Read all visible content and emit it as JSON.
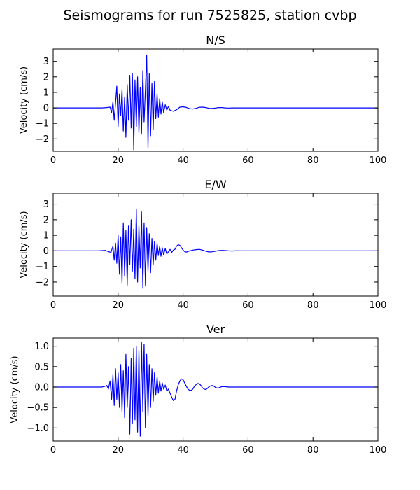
{
  "figure": {
    "title": "Seismograms for run 7525825, station cvbp"
  },
  "chart_data": [
    {
      "type": "line",
      "title": "N/S",
      "xlabel": "",
      "ylabel": "Velocity (cm/s)",
      "xlim": [
        0,
        100
      ],
      "ylim": [
        -2.8,
        3.8
      ],
      "xticks": [
        0,
        20,
        40,
        60,
        80,
        100
      ],
      "yticks": [
        -2,
        -1,
        0,
        1,
        2,
        3
      ],
      "ytick_labels": [
        "−2",
        "−1",
        "0",
        "1",
        "2",
        "3"
      ],
      "grid": false,
      "color": "#0000ff",
      "x": [
        0,
        15,
        16.5,
        17.5,
        18,
        18.4,
        18.8,
        19.2,
        19.6,
        20,
        20.4,
        20.8,
        21.2,
        21.6,
        22,
        22.4,
        22.8,
        23.2,
        23.6,
        24,
        24.4,
        24.8,
        25.2,
        25.6,
        26,
        26.4,
        26.8,
        27.2,
        27.6,
        28,
        28.4,
        28.8,
        29.2,
        29.6,
        30,
        30.4,
        30.8,
        31.2,
        31.6,
        32,
        32.4,
        32.8,
        33.2,
        33.6,
        34,
        34.5,
        35,
        35.5,
        36,
        37,
        38,
        39,
        40,
        41,
        42,
        43,
        44,
        45,
        46,
        47,
        48,
        49,
        50,
        51,
        52,
        53,
        54,
        55,
        56,
        58,
        60,
        100
      ],
      "y": [
        0,
        0,
        0.02,
        0.05,
        -0.3,
        0.4,
        -0.8,
        0.3,
        1.4,
        -1.2,
        0.9,
        -0.5,
        1.2,
        -1.5,
        0.7,
        -1.9,
        1.5,
        -0.8,
        2.1,
        -1.3,
        2.2,
        -2.7,
        1.8,
        -1.2,
        2.0,
        -1.6,
        1.3,
        -1.7,
        2.4,
        -0.9,
        1.2,
        3.4,
        -2.6,
        2.2,
        -1.8,
        1.6,
        -1.4,
        1.7,
        -0.7,
        0.9,
        -0.6,
        0.6,
        -0.4,
        0.4,
        -0.3,
        0.2,
        -0.15,
        0.1,
        -0.15,
        -0.22,
        -0.12,
        0.05,
        0.07,
        0.03,
        -0.05,
        -0.07,
        -0.03,
        0.04,
        0.05,
        0.02,
        -0.03,
        -0.04,
        -0.01,
        0.02,
        0.02,
        0,
        -0.01,
        0,
        0,
        0,
        0,
        0
      ]
    },
    {
      "type": "line",
      "title": "E/W",
      "xlabel": "",
      "ylabel": "Velocity (cm/s)",
      "xlim": [
        0,
        100
      ],
      "ylim": [
        -2.9,
        3.7
      ],
      "xticks": [
        0,
        20,
        40,
        60,
        80,
        100
      ],
      "yticks": [
        -2,
        -1,
        0,
        1,
        2,
        3
      ],
      "ytick_labels": [
        "−2",
        "−1",
        "0",
        "1",
        "2",
        "3"
      ],
      "grid": false,
      "color": "#0000ff",
      "x": [
        0,
        14,
        16,
        17,
        17.8,
        18.4,
        18.8,
        19.2,
        19.6,
        20,
        20.4,
        20.8,
        21.2,
        21.6,
        22,
        22.4,
        22.8,
        23.2,
        23.6,
        24,
        24.4,
        24.8,
        25.2,
        25.6,
        26,
        26.4,
        26.8,
        27.2,
        27.6,
        28,
        28.4,
        28.8,
        29.2,
        29.6,
        30,
        30.4,
        30.8,
        31.2,
        31.6,
        32,
        32.4,
        32.8,
        33.2,
        33.6,
        34,
        34.5,
        35,
        35.5,
        36,
        36.5,
        37,
        37.5,
        38,
        38.5,
        39,
        39.5,
        40,
        40.5,
        41,
        41.5,
        42,
        43,
        44,
        45,
        46,
        47,
        48,
        49,
        50,
        51,
        52,
        53,
        54,
        55,
        56,
        58,
        60,
        100
      ],
      "y": [
        0,
        0,
        0.03,
        -0.05,
        -0.1,
        0.3,
        -0.6,
        0.5,
        -0.8,
        1.0,
        -1.5,
        0.9,
        -2.1,
        1.8,
        -1.6,
        1.3,
        -2.2,
        1.6,
        -0.9,
        2.0,
        -1.3,
        1.4,
        -1.8,
        2.7,
        -2.0,
        1.6,
        -1.1,
        2.5,
        -2.4,
        1.8,
        -2.2,
        1.5,
        -1.3,
        1.1,
        -1.4,
        0.8,
        -0.9,
        0.6,
        -0.6,
        0.5,
        -0.3,
        0.3,
        -0.35,
        0.2,
        -0.25,
        0.15,
        -0.2,
        -0.05,
        0.1,
        -0.1,
        0.05,
        0.1,
        0.3,
        0.4,
        0.35,
        0.2,
        0.05,
        -0.05,
        -0.08,
        -0.05,
        0,
        0.05,
        0.08,
        0.1,
        0.05,
        -0.02,
        -0.07,
        -0.06,
        -0.02,
        0.02,
        0.03,
        0.02,
        0,
        -0.01,
        0,
        0,
        0,
        0
      ]
    },
    {
      "type": "line",
      "title": "Ver",
      "xlabel": "",
      "ylabel": "Velocity (cm/s)",
      "xlim": [
        0,
        100
      ],
      "ylim": [
        -1.32,
        1.2
      ],
      "xticks": [
        0,
        20,
        40,
        60,
        80,
        100
      ],
      "yticks": [
        -1.0,
        -0.5,
        0.0,
        0.5,
        1.0
      ],
      "ytick_labels": [
        "−1.0",
        "−0.5",
        "0.0",
        "0.5",
        "1.0"
      ],
      "grid": false,
      "color": "#0000ff",
      "x": [
        0,
        13,
        15,
        16,
        16.5,
        17,
        17.5,
        18,
        18.4,
        18.8,
        19.2,
        19.6,
        20,
        20.4,
        20.8,
        21.2,
        21.6,
        22,
        22.4,
        22.8,
        23.2,
        23.6,
        24,
        24.4,
        24.8,
        25.2,
        25.6,
        26,
        26.4,
        26.8,
        27.2,
        27.6,
        28,
        28.4,
        28.8,
        29.2,
        29.6,
        30,
        30.4,
        30.8,
        31.2,
        31.6,
        32,
        32.4,
        32.8,
        33.2,
        33.6,
        34,
        34.5,
        35,
        35.5,
        36,
        36.5,
        37,
        37.5,
        38,
        38.5,
        39,
        39.5,
        40,
        40.5,
        41,
        41.5,
        42,
        42.5,
        43,
        43.5,
        44,
        44.5,
        45,
        45.5,
        46,
        46.5,
        47,
        47.5,
        48,
        48.5,
        49,
        49.5,
        50,
        50.5,
        51,
        51.5,
        52,
        53,
        54,
        55,
        56,
        58,
        60,
        100
      ],
      "y": [
        0,
        0,
        0,
        0.02,
        0.04,
        -0.05,
        0.15,
        -0.3,
        0.3,
        -0.45,
        0.45,
        -0.3,
        0.35,
        -0.5,
        0.55,
        -0.6,
        0.4,
        -0.75,
        0.8,
        -0.5,
        0.5,
        -1.15,
        0.7,
        -0.9,
        0.95,
        -0.8,
        1.0,
        -1.1,
        0.9,
        -1.2,
        1.1,
        -0.6,
        1.05,
        -1.0,
        0.8,
        -0.7,
        0.55,
        -0.5,
        0.45,
        -0.35,
        0.35,
        -0.2,
        0.25,
        -0.15,
        0.15,
        -0.1,
        0.1,
        -0.05,
        0.05,
        -0.1,
        -0.05,
        -0.15,
        -0.25,
        -0.33,
        -0.3,
        -0.1,
        0.05,
        0.15,
        0.2,
        0.18,
        0.1,
        0.02,
        -0.05,
        -0.08,
        -0.08,
        -0.05,
        0.02,
        0.06,
        0.09,
        0.08,
        0.04,
        -0.02,
        -0.05,
        -0.06,
        -0.03,
        0.01,
        0.03,
        0.04,
        0.02,
        -0.01,
        -0.02,
        -0.02,
        0,
        0.01,
        0.01,
        0,
        0,
        0,
        0,
        0,
        0
      ]
    }
  ]
}
